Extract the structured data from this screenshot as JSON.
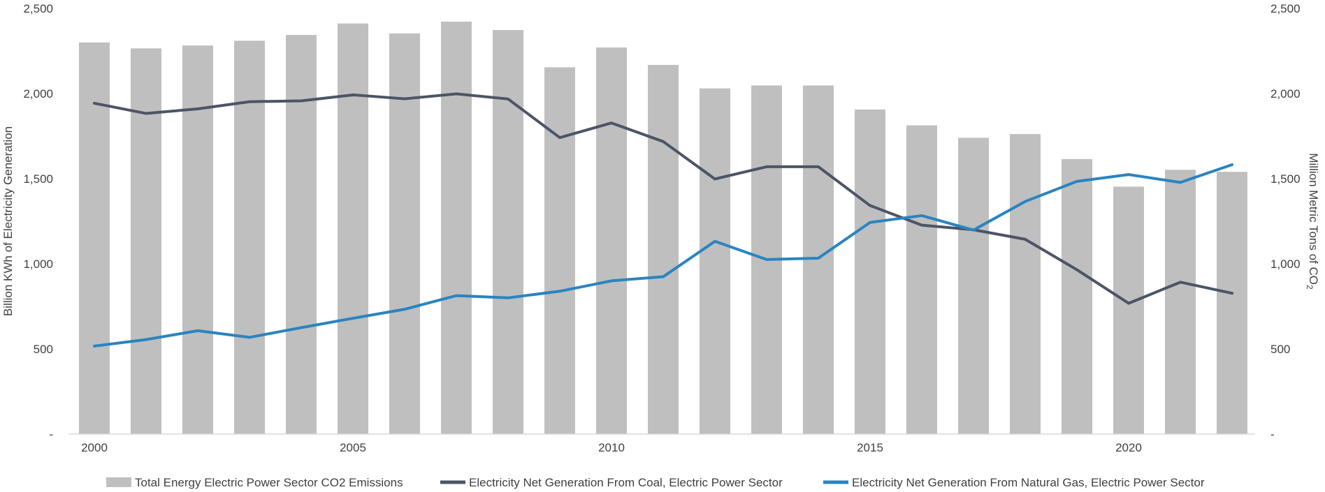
{
  "chart_data": {
    "type": "bar+line",
    "title": "",
    "categories": [
      "2000",
      "2001",
      "2002",
      "2003",
      "2004",
      "2005",
      "2006",
      "2007",
      "2008",
      "2009",
      "2010",
      "2011",
      "2012",
      "2013",
      "2014",
      "2015",
      "2016",
      "2017",
      "2018",
      "2019",
      "2020",
      "2021",
      "2022"
    ],
    "x_tick_labels": [
      {
        "year": "2000",
        "label": "2000"
      },
      {
        "year": "2005",
        "label": "2005"
      },
      {
        "year": "2010",
        "label": "2010"
      },
      {
        "year": "2015",
        "label": "2015"
      },
      {
        "year": "2020",
        "label": "2020"
      }
    ],
    "left_axis": {
      "title": "Billion KWh of Electricity Generation",
      "range": [
        0,
        2500
      ],
      "ticks": [
        0,
        500,
        1000,
        1500,
        2000,
        2500
      ],
      "tick_labels": [
        "-",
        "500",
        "1,000",
        "1,500",
        "2,000",
        "2,500"
      ]
    },
    "right_axis": {
      "title": "Million Metric Tons of CO",
      "title_subscript": "2",
      "range": [
        0,
        2500
      ],
      "ticks": [
        0,
        500,
        1000,
        1500,
        2000,
        2500
      ],
      "tick_labels": [
        "-",
        "500",
        "1,000",
        "1,500",
        "2,000",
        "2,500"
      ]
    },
    "series": [
      {
        "name": "Total Energy Electric Power Sector CO2 Emissions",
        "kind": "bar",
        "axis": "right",
        "color": "#bfbfbf",
        "values": [
          2300,
          2265,
          2282,
          2310,
          2344,
          2411,
          2353,
          2422,
          2373,
          2154,
          2270,
          2168,
          2030,
          2047,
          2047,
          1906,
          1813,
          1740,
          1762,
          1615,
          1453,
          1552,
          1540
        ]
      },
      {
        "name": "Electricity Net Generation From Coal, Electric Power Sector",
        "kind": "line",
        "axis": "left",
        "color": "#4c5466",
        "values": [
          1943,
          1883,
          1910,
          1952,
          1957,
          1992,
          1969,
          1998,
          1968,
          1741,
          1827,
          1718,
          1498,
          1570,
          1570,
          1342,
          1227,
          1200,
          1144,
          965,
          768,
          892,
          827
        ]
      },
      {
        "name": "Electricity Net Generation From Natural Gas, Electric Power Sector",
        "kind": "line",
        "axis": "left",
        "color": "#2a84c0",
        "values": [
          517,
          555,
          607,
          568,
          625,
          680,
          733,
          813,
          800,
          839,
          900,
          924,
          1132,
          1025,
          1033,
          1243,
          1283,
          1198,
          1366,
          1484,
          1524,
          1478,
          1582
        ]
      }
    ],
    "legend_position": "bottom",
    "grid": false
  }
}
